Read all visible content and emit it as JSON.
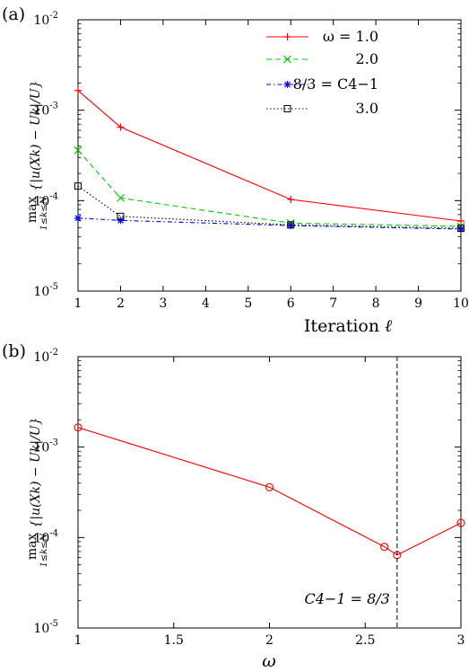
{
  "chart_data": [
    {
      "type": "line",
      "panel_label": "(a)",
      "xlabel": "Iteration",
      "xlabel_symbol": "ℓ",
      "ylabel_op": "max",
      "ylabel_sub": "1≤k≤N",
      "ylabel_expr": "{|u(Xk) − Uk|/U}",
      "xlim": [
        1,
        10
      ],
      "ylim": [
        1e-05,
        0.01
      ],
      "yscale": "log",
      "x_ticks": [
        "1",
        "2",
        "3",
        "4",
        "5",
        "6",
        "7",
        "8",
        "9",
        "10"
      ],
      "y_ticks": [
        {
          "mantissa": "10",
          "exp": "-5"
        },
        {
          "mantissa": "10",
          "exp": "-4"
        },
        {
          "mantissa": "10",
          "exp": "-3"
        },
        {
          "mantissa": "10",
          "exp": "-2"
        }
      ],
      "legend_position": "top-right",
      "series": [
        {
          "name": "ω = 1.0",
          "color": "#ff0000",
          "dash": "solid",
          "marker": "plus",
          "x": [
            1,
            2,
            6,
            10
          ],
          "y": [
            0.00165,
            0.00065,
            0.000103,
            5.95e-05
          ]
        },
        {
          "name": "2.0",
          "color": "#00cc00",
          "dash": "dashed",
          "marker": "cross",
          "x": [
            1,
            2,
            6,
            10
          ],
          "y": [
            0.00036,
            0.000107,
            5.65e-05,
            5.2e-05
          ]
        },
        {
          "name": "8/3 = C4−1",
          "color": "#0000ff",
          "dash": "dashdot",
          "marker": "star",
          "x": [
            1,
            2,
            6,
            10
          ],
          "y": [
            6.4e-05,
            6.05e-05,
            5.3e-05,
            4.85e-05
          ]
        },
        {
          "name": "3.0",
          "color": "#000000",
          "dash": "dotted",
          "marker": "square",
          "x": [
            1,
            2,
            6,
            10
          ],
          "y": [
            0.000145,
            6.7e-05,
            5.4e-05,
            4.95e-05
          ]
        }
      ]
    },
    {
      "type": "line",
      "panel_label": "(b)",
      "xlabel": "ω",
      "ylabel_op": "max",
      "ylabel_sub": "1≤k≤N",
      "ylabel_expr": "{|u(Xk) − Uk|/U}",
      "xlim": [
        1,
        3
      ],
      "ylim": [
        1e-05,
        0.01
      ],
      "yscale": "log",
      "x_ticks": [
        "1",
        "1.5",
        "2",
        "2.5",
        "3"
      ],
      "y_ticks": [
        {
          "mantissa": "10",
          "exp": "-5"
        },
        {
          "mantissa": "10",
          "exp": "-4"
        },
        {
          "mantissa": "10",
          "exp": "-3"
        },
        {
          "mantissa": "10",
          "exp": "-2"
        }
      ],
      "vline": {
        "x": 2.6667,
        "label": "C4−1 = 8/3"
      },
      "series": [
        {
          "color": "#ff0000",
          "dash": "solid",
          "marker": "circle",
          "x": [
            1.0,
            2.0,
            2.6,
            2.6667,
            3.0
          ],
          "y": [
            0.00165,
            0.00036,
            7.9e-05,
            6.4e-05,
            0.000145
          ]
        }
      ]
    }
  ]
}
